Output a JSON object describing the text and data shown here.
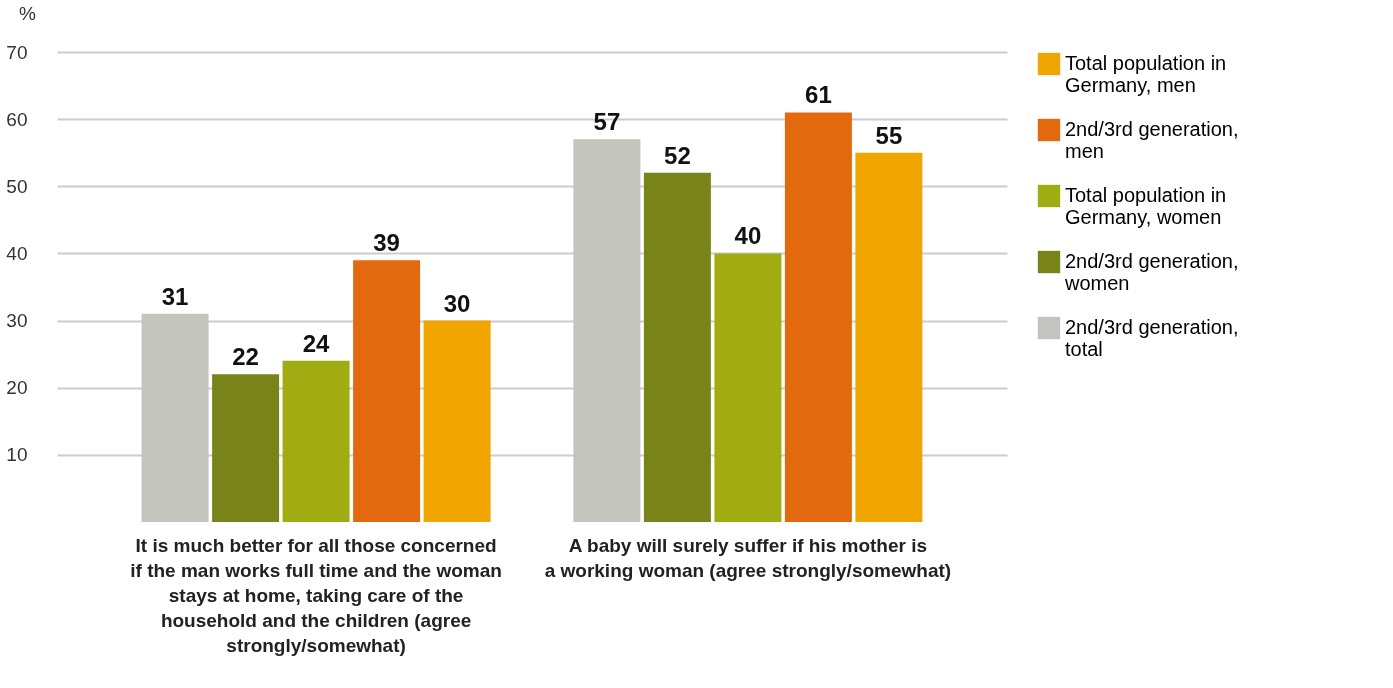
{
  "chart_data": {
    "type": "bar",
    "ylabel": "%",
    "categories": [
      "It is much better for all those concerned if the man works full time and the woman stays at home, taking care of the household and the children (agree strongly/somewhat)",
      "A baby will surely suffer if his mother is a working woman (agree strongly/somewhat)"
    ],
    "series": [
      {
        "name": "2nd/3rd generation, total",
        "color": "#c4c4be",
        "values": [
          31,
          57
        ]
      },
      {
        "name": "2nd/3rd generation, women",
        "color": "#788419",
        "values": [
          22,
          52
        ]
      },
      {
        "name": "Total population in Germany, women",
        "color": "#a0ac12",
        "values": [
          24,
          40
        ]
      },
      {
        "name": "2nd/3rd generation, men",
        "color": "#e3690f",
        "values": [
          39,
          61
        ]
      },
      {
        "name": "Total population in Germany, men",
        "color": "#f0a500",
        "values": [
          30,
          55
        ]
      }
    ],
    "ylim": [
      0,
      70
    ],
    "yticks": [
      10,
      20,
      30,
      40,
      50,
      60,
      70
    ],
    "grid": "y",
    "legend": "right",
    "data_labels": true
  }
}
